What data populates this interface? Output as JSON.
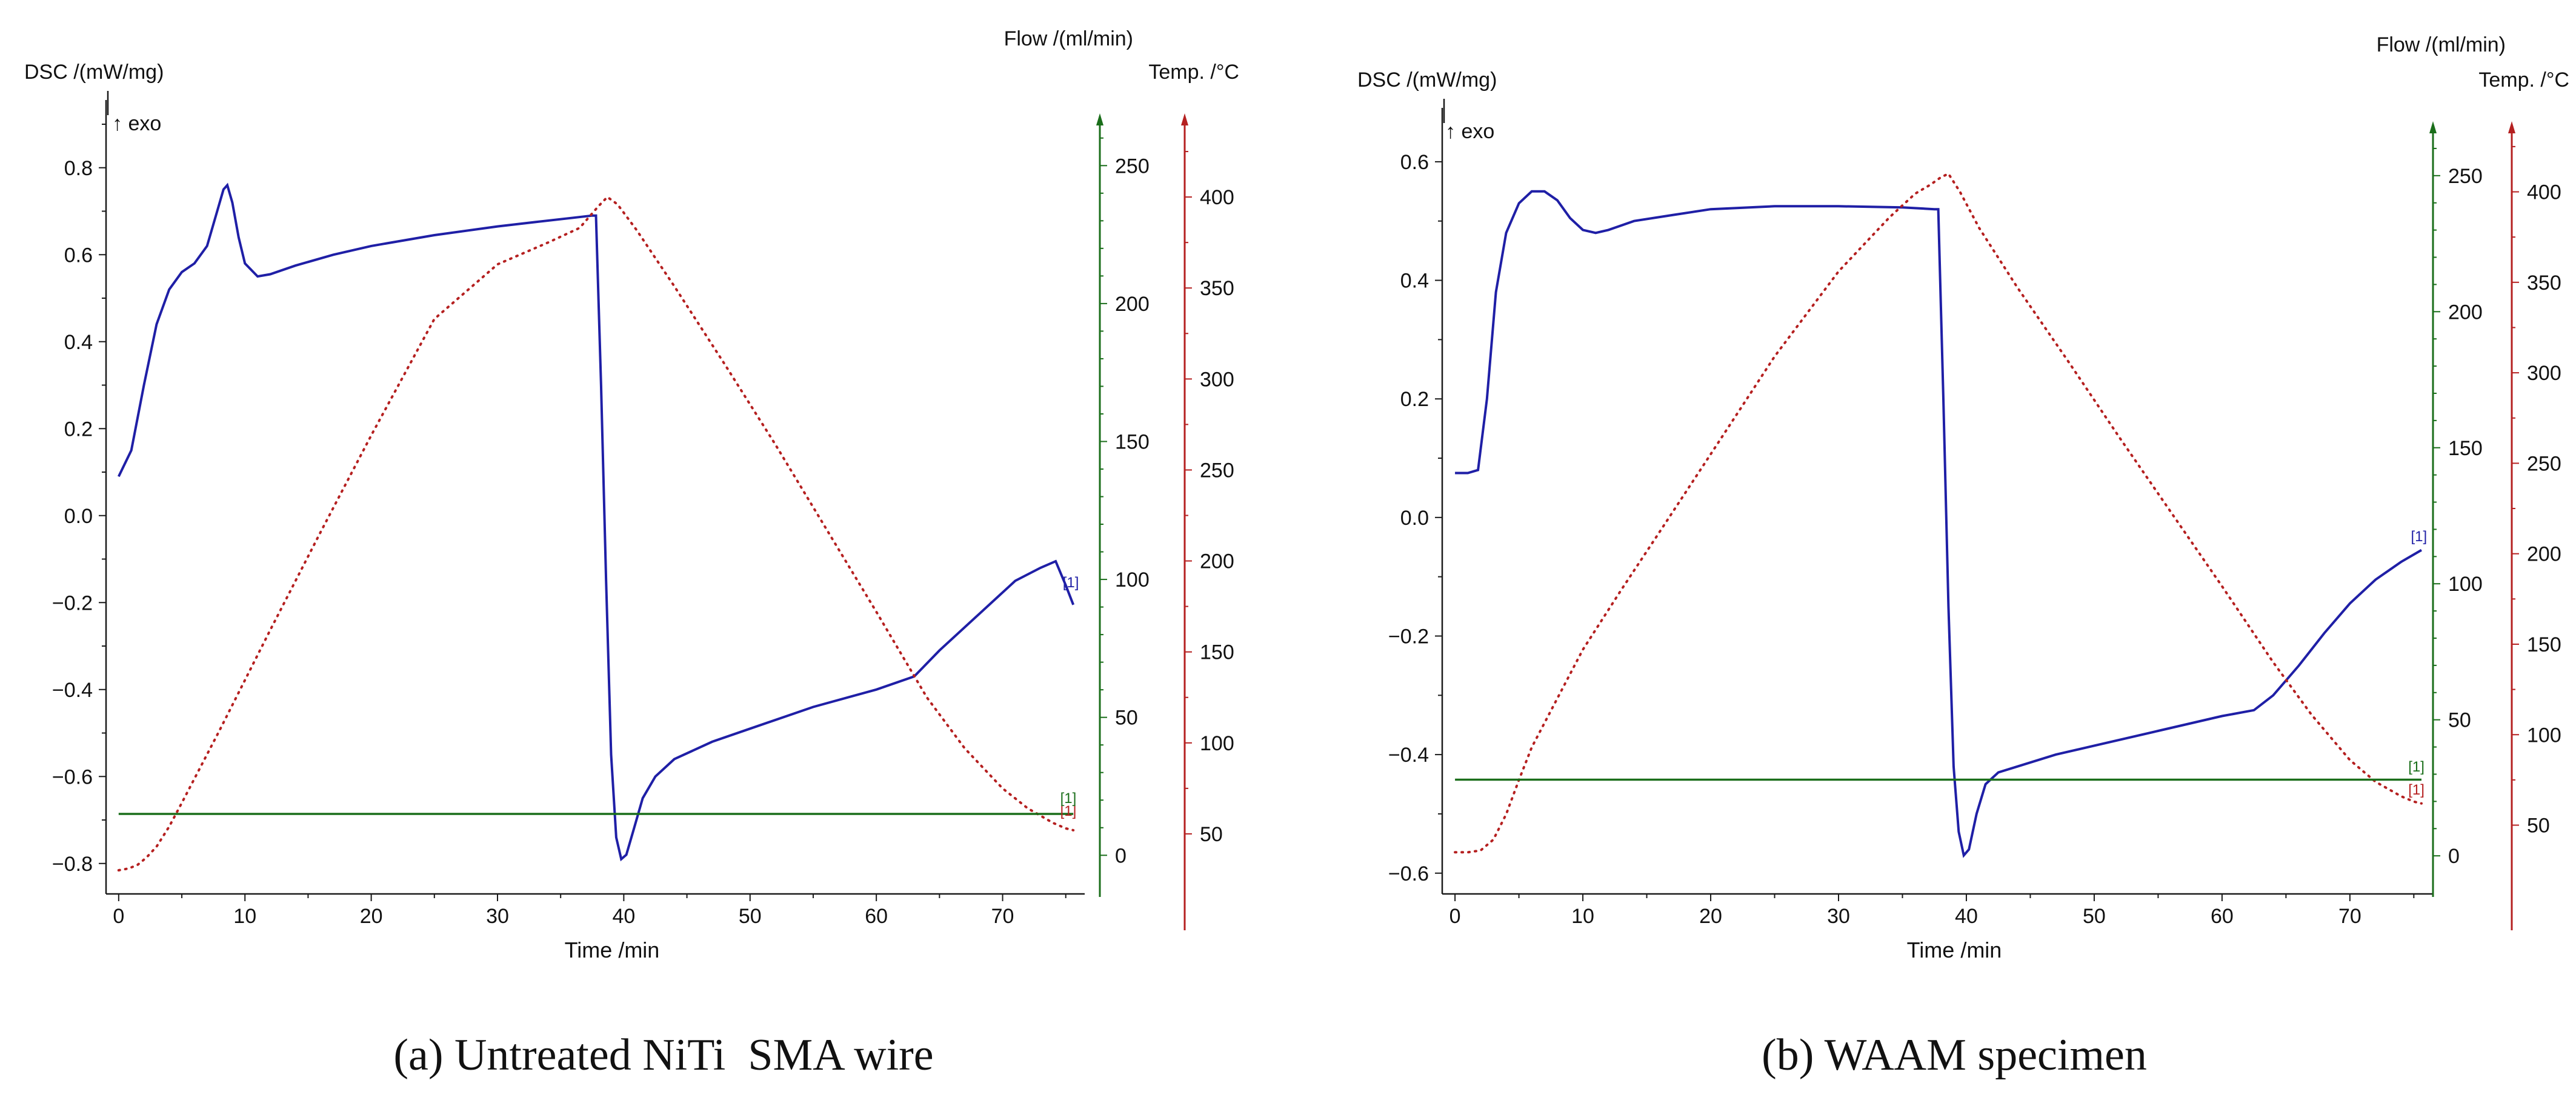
{
  "colors": {
    "dsc": "#1f1fa6",
    "flow": "#1a6e1a",
    "temp": "#b52020",
    "axis": "#1a1a1a"
  },
  "chart_data": [
    {
      "id": "a",
      "type": "line",
      "caption": "(a) Untreated NiTi  SMA wire",
      "xlabel": "Time /min",
      "ylabel_dsc": "DSC /(mW/mg)",
      "exo_label": "↑ exo",
      "ylabel_flow": "Flow /(ml/min)",
      "ylabel_temp": "Temp. /°C",
      "xlim": [
        -1,
        76.5
      ],
      "xticks": [
        0,
        10,
        20,
        30,
        40,
        50,
        60,
        70
      ],
      "dsc_lim": [
        -0.87,
        0.9
      ],
      "dsc_ticks": [
        -0.8,
        -0.6,
        -0.4,
        -0.2,
        0.0,
        0.2,
        0.4,
        0.6,
        0.8
      ],
      "dsc_tick_labels": [
        "−0.8",
        "−0.6",
        "−0.4",
        "−0.2",
        "0.0",
        "0.2",
        "0.4",
        "0.6",
        "0.8"
      ],
      "flow_lim": [
        -14,
        265
      ],
      "flow_ticks": [
        0,
        50,
        100,
        150,
        200,
        250
      ],
      "temp_lim": [
        17,
        440
      ],
      "temp_ticks": [
        50,
        100,
        150,
        200,
        250,
        300,
        350,
        400
      ],
      "series": [
        {
          "name": "DSC",
          "axis": "dsc",
          "style": "solid",
          "x": [
            0,
            1,
            2,
            3,
            4,
            5,
            6,
            7,
            7.8,
            8.3,
            8.6,
            9,
            9.5,
            10,
            11,
            12,
            14,
            17,
            20,
            25,
            30,
            33,
            36,
            37.5,
            37.8,
            38.2,
            38.6,
            39,
            39.4,
            39.8,
            40.2,
            40.8,
            41.5,
            42.5,
            44,
            47,
            50,
            55,
            60,
            63,
            65,
            68,
            71,
            73,
            74.2,
            75,
            75.6
          ],
          "y": [
            0.09,
            0.15,
            0.3,
            0.44,
            0.52,
            0.56,
            0.58,
            0.62,
            0.7,
            0.75,
            0.76,
            0.72,
            0.64,
            0.58,
            0.55,
            0.555,
            0.575,
            0.6,
            0.62,
            0.645,
            0.665,
            0.675,
            0.685,
            0.69,
            0.69,
            0.3,
            -0.15,
            -0.55,
            -0.74,
            -0.79,
            -0.78,
            -0.72,
            -0.65,
            -0.6,
            -0.56,
            -0.52,
            -0.49,
            -0.44,
            -0.4,
            -0.37,
            -0.31,
            -0.23,
            -0.15,
            -0.12,
            -0.105,
            -0.16,
            -0.205
          ]
        },
        {
          "name": "Temp",
          "axis": "temp",
          "style": "dotted",
          "x": [
            0,
            0.8,
            1.5,
            2.2,
            3,
            4,
            5,
            8,
            12,
            16,
            20,
            25,
            30,
            34,
            36.5,
            38,
            38.7,
            39.5,
            41,
            44,
            48,
            52,
            56,
            60,
            64,
            67,
            70,
            72,
            74,
            75,
            75.6
          ],
          "y": [
            30,
            31,
            33,
            37,
            43,
            54,
            67,
            107,
            162,
            216,
            269,
            333,
            363,
            375,
            383,
            395,
            400,
            396,
            382,
            351,
            308,
            264,
            218,
            172,
            125,
            97,
            75,
            64,
            56,
            53,
            52
          ]
        },
        {
          "name": "Flow",
          "axis": "flow",
          "style": "solid",
          "x": [
            0,
            75.6
          ],
          "y": [
            15,
            15
          ]
        }
      ],
      "markers": [
        {
          "text": "[1]",
          "x": 75.4,
          "axis": "dsc",
          "y": -0.165,
          "color": "dsc"
        },
        {
          "text": "[1]",
          "x": 75.2,
          "axis": "temp",
          "y": 60,
          "color": "temp"
        },
        {
          "text": "[1]",
          "x": 75.2,
          "axis": "flow",
          "y": 19,
          "color": "flow"
        }
      ]
    },
    {
      "id": "b",
      "type": "line",
      "caption": "(b) WAAM specimen",
      "xlabel": "Time /min",
      "ylabel_dsc": "DSC /(mW/mg)",
      "exo_label": "↑ exo",
      "ylabel_flow": "Flow /(ml/min)",
      "ylabel_temp": "Temp. /°C",
      "xlim": [
        -1,
        76.5
      ],
      "xticks": [
        0,
        10,
        20,
        30,
        40,
        50,
        60,
        70
      ],
      "dsc_lim": [
        -0.635,
        0.65
      ],
      "dsc_ticks": [
        -0.6,
        -0.4,
        -0.2,
        0.0,
        0.2,
        0.4,
        0.6
      ],
      "dsc_tick_labels": [
        "−0.6",
        "−0.4",
        "−0.2",
        "0.0",
        "0.2",
        "0.4",
        "0.6"
      ],
      "flow_lim": [
        -14,
        266
      ],
      "flow_ticks": [
        0,
        50,
        100,
        150,
        200,
        250
      ],
      "temp_lim": [
        12,
        433
      ],
      "temp_ticks": [
        50,
        100,
        150,
        200,
        250,
        300,
        350,
        400
      ],
      "series": [
        {
          "name": "DSC",
          "axis": "dsc",
          "style": "solid",
          "x": [
            0,
            1,
            1.8,
            2.5,
            3.2,
            4,
            5,
            6,
            7,
            8,
            9,
            10,
            11,
            12,
            14,
            17,
            20,
            25,
            30,
            35,
            37.5,
            37.8,
            38.2,
            38.6,
            39,
            39.4,
            39.8,
            40.2,
            40.8,
            41.5,
            42.5,
            44,
            47,
            50,
            55,
            60,
            62.5,
            64,
            66,
            68,
            70,
            72,
            74,
            75.6
          ],
          "y": [
            0.075,
            0.075,
            0.08,
            0.2,
            0.38,
            0.48,
            0.53,
            0.55,
            0.55,
            0.535,
            0.505,
            0.485,
            0.48,
            0.485,
            0.5,
            0.51,
            0.52,
            0.525,
            0.525,
            0.523,
            0.52,
            0.52,
            0.2,
            -0.15,
            -0.42,
            -0.53,
            -0.57,
            -0.56,
            -0.5,
            -0.45,
            -0.43,
            -0.42,
            -0.4,
            -0.385,
            -0.36,
            -0.335,
            -0.325,
            -0.3,
            -0.25,
            -0.195,
            -0.145,
            -0.105,
            -0.075,
            -0.055
          ]
        },
        {
          "name": "Temp",
          "axis": "temp",
          "style": "dotted",
          "x": [
            0,
            1,
            2,
            3,
            4,
            5,
            6,
            8,
            10,
            13,
            16,
            20,
            25,
            30,
            34,
            36,
            37.2,
            38,
            38.6,
            39.5,
            41,
            44,
            48,
            52,
            56,
            60,
            64,
            67,
            70,
            72,
            74,
            75,
            75.6
          ],
          "y": [
            35,
            35,
            36,
            42,
            56,
            75,
            93,
            120,
            147,
            180,
            212,
            255,
            309,
            356,
            386,
            399,
            404,
            408,
            410,
            400,
            380,
            347,
            306,
            264,
            223,
            182,
            140,
            111,
            86,
            74,
            66,
            63,
            62
          ]
        },
        {
          "name": "Flow",
          "axis": "flow",
          "style": "solid",
          "x": [
            0,
            75.6
          ],
          "y": [
            28,
            28
          ]
        }
      ],
      "markers": [
        {
          "text": "[1]",
          "x": 75.4,
          "axis": "dsc",
          "y": -0.04,
          "color": "dsc"
        },
        {
          "text": "[1]",
          "x": 75.2,
          "axis": "temp",
          "y": 67,
          "color": "temp"
        },
        {
          "text": "[1]",
          "x": 75.2,
          "axis": "flow",
          "y": 31,
          "color": "flow"
        }
      ]
    }
  ]
}
